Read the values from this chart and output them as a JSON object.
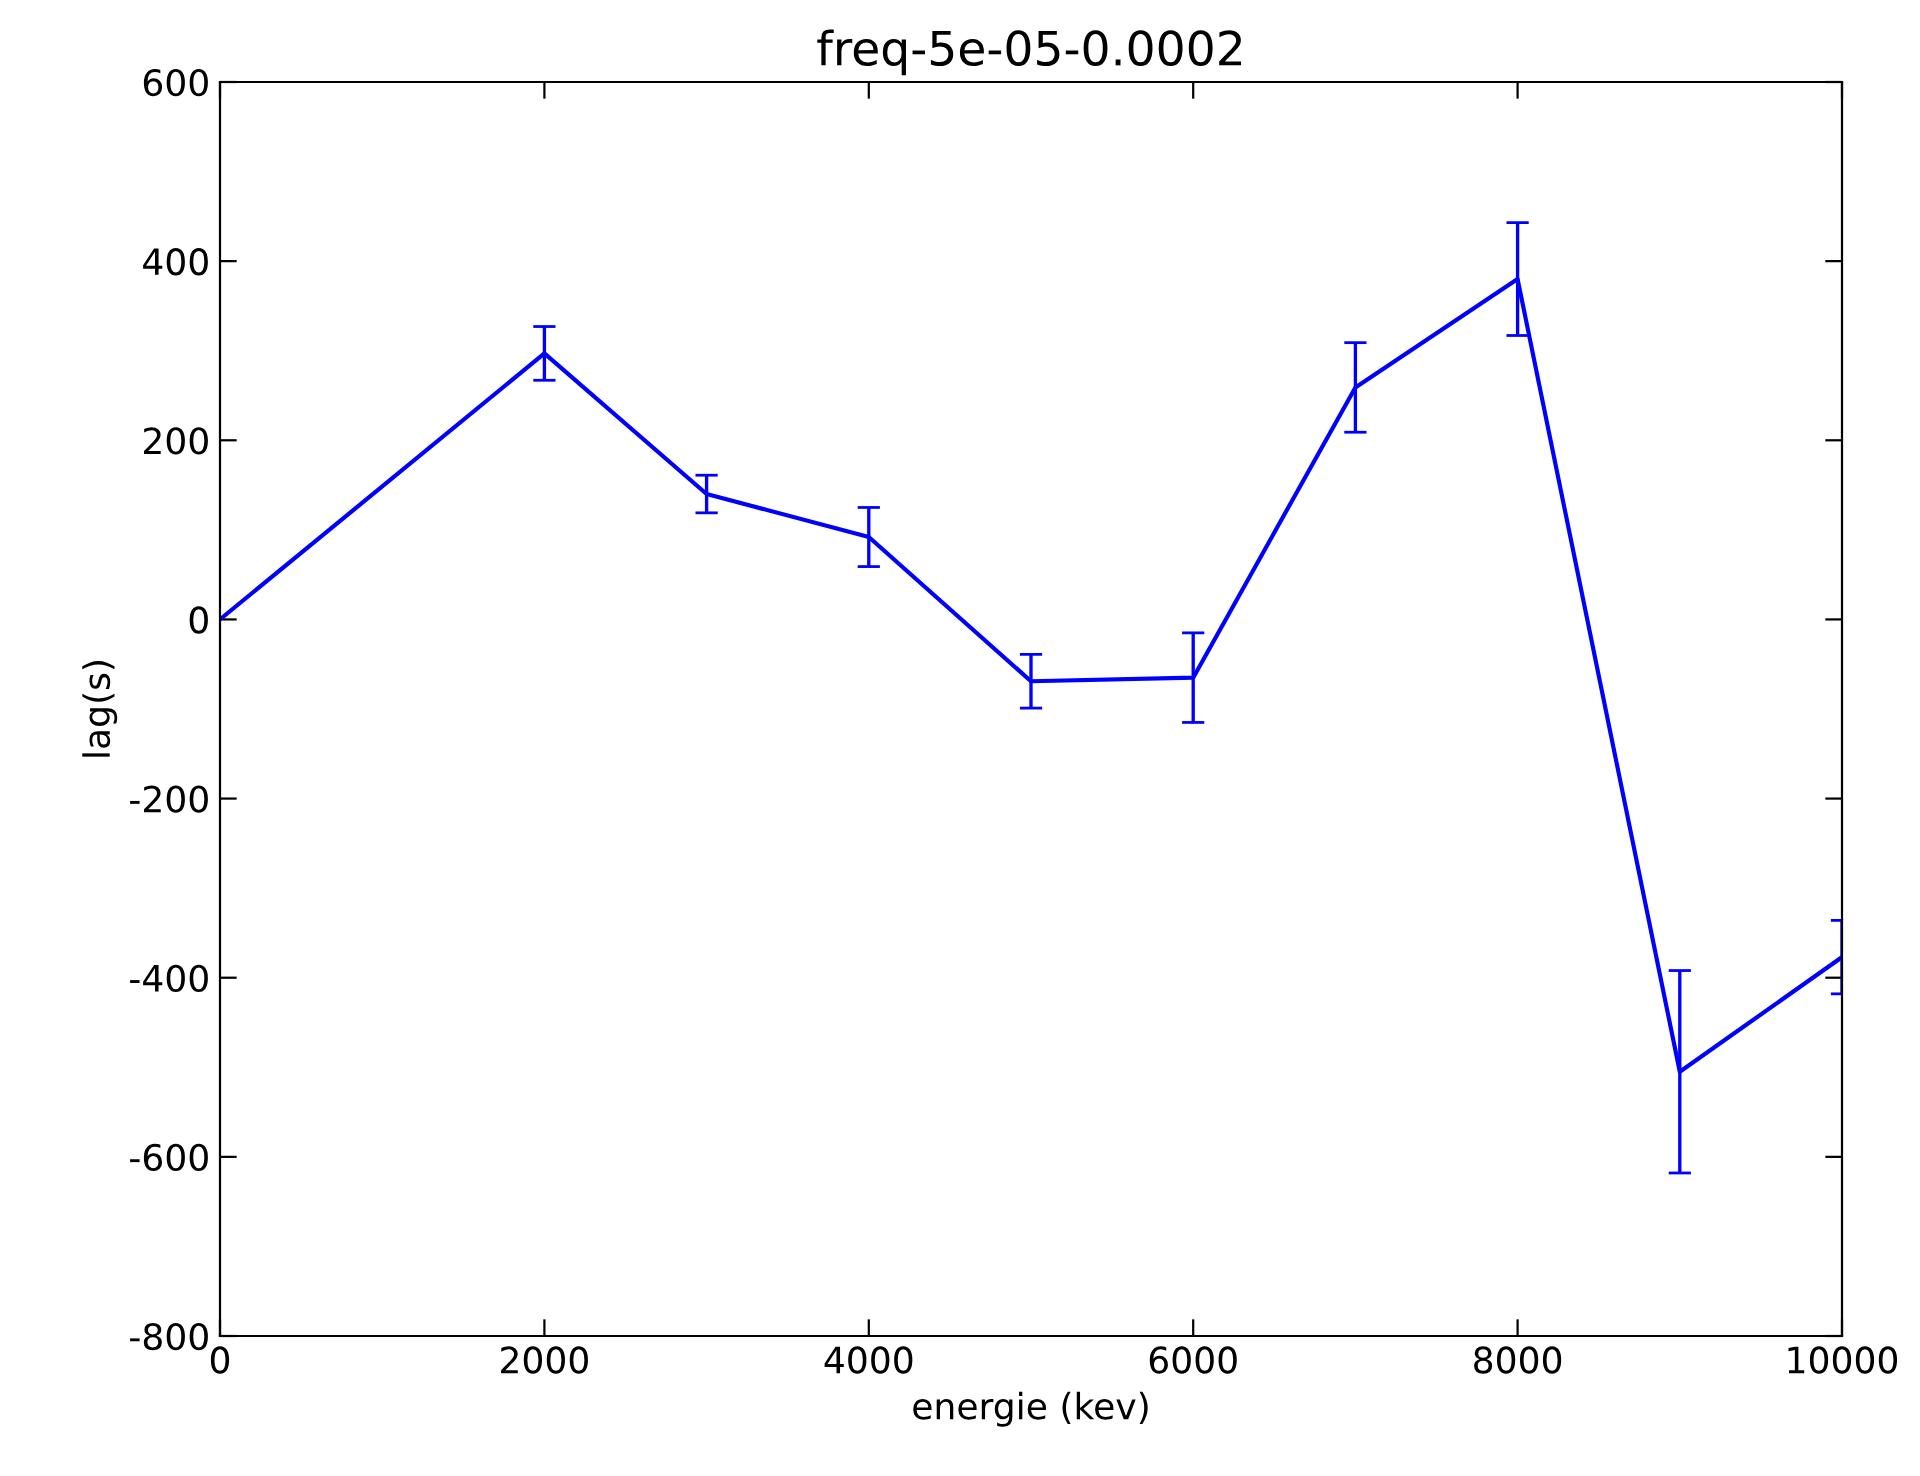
{
  "chart_data": {
    "type": "line",
    "title": "freq-5e-05-0.0002",
    "xlabel": "energie (kev)",
    "ylabel": "lag(s)",
    "x": [
      0,
      2000,
      3000,
      4000,
      5000,
      6000,
      7000,
      8000,
      9000,
      10000
    ],
    "series": [
      {
        "color": "#0000ff",
        "values": [
          0,
          297,
          140,
          92,
          -69,
          -65,
          259,
          380,
          -505,
          -377
        ],
        "errors": [
          null,
          30,
          21,
          33,
          30,
          50,
          50,
          63,
          113,
          41
        ]
      }
    ],
    "xlim": [
      0,
      10000
    ],
    "ylim": [
      -800,
      600
    ],
    "xticks": [
      0,
      2000,
      4000,
      6000,
      8000,
      10000
    ],
    "yticks": [
      -800,
      -600,
      -400,
      -200,
      0,
      200,
      400,
      600
    ],
    "grid": false,
    "legend": false,
    "marker": "none",
    "line_style": "solid"
  }
}
